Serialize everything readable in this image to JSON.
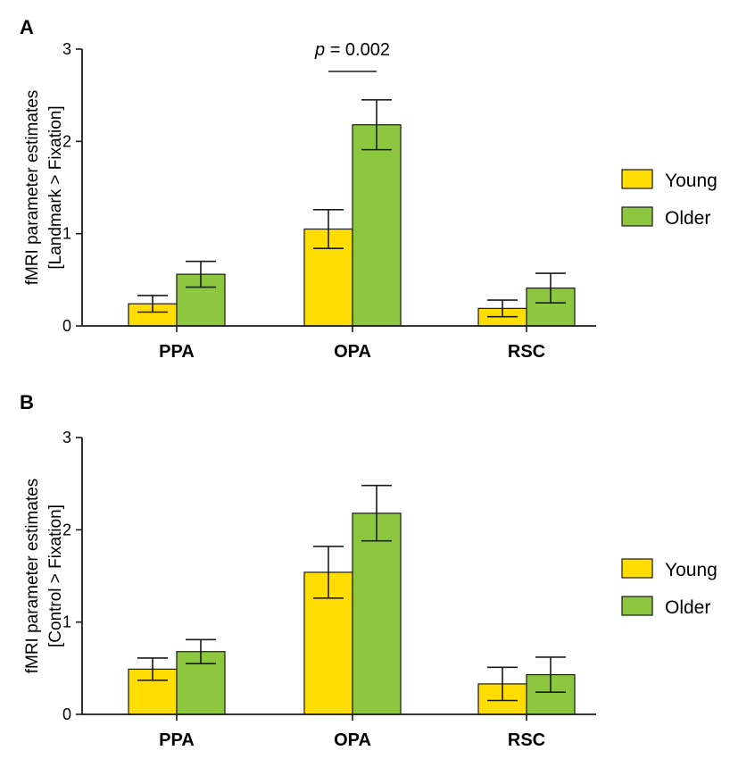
{
  "colors": {
    "young": "#FFDD00",
    "older": "#8DC63F",
    "axis": "#1a1a1a"
  },
  "chart_data": [
    {
      "panel": "A",
      "type": "bar",
      "categories": [
        "PPA",
        "OPA",
        "RSC"
      ],
      "series": [
        {
          "name": "Young",
          "values": [
            0.24,
            1.05,
            0.19
          ],
          "errors": [
            0.09,
            0.21,
            0.09
          ]
        },
        {
          "name": "Older",
          "values": [
            0.56,
            2.18,
            0.41
          ],
          "errors": [
            0.14,
            0.27,
            0.16
          ]
        }
      ],
      "ylim": [
        0,
        3
      ],
      "yticks": [
        0,
        1,
        2,
        3
      ],
      "ylabel_line1": "fMRI parameter estimates",
      "ylabel_line2": "[Landmark > Fixation]",
      "legend": [
        "Young",
        "Older"
      ],
      "legend_position": "right",
      "annotation": {
        "p_italic": "p",
        "rest": " = 0.002",
        "category": "OPA"
      }
    },
    {
      "panel": "B",
      "type": "bar",
      "categories": [
        "PPA",
        "OPA",
        "RSC"
      ],
      "series": [
        {
          "name": "Young",
          "values": [
            0.49,
            1.54,
            0.33
          ],
          "errors": [
            0.12,
            0.28,
            0.18
          ]
        },
        {
          "name": "Older",
          "values": [
            0.68,
            2.18,
            0.43
          ],
          "errors": [
            0.13,
            0.3,
            0.19
          ]
        }
      ],
      "ylim": [
        0,
        3
      ],
      "yticks": [
        0,
        1,
        2,
        3
      ],
      "ylabel_line1": "fMRI parameter estimates",
      "ylabel_line2": "[Control > Fixation]",
      "legend": [
        "Young",
        "Older"
      ],
      "legend_position": "right"
    }
  ]
}
